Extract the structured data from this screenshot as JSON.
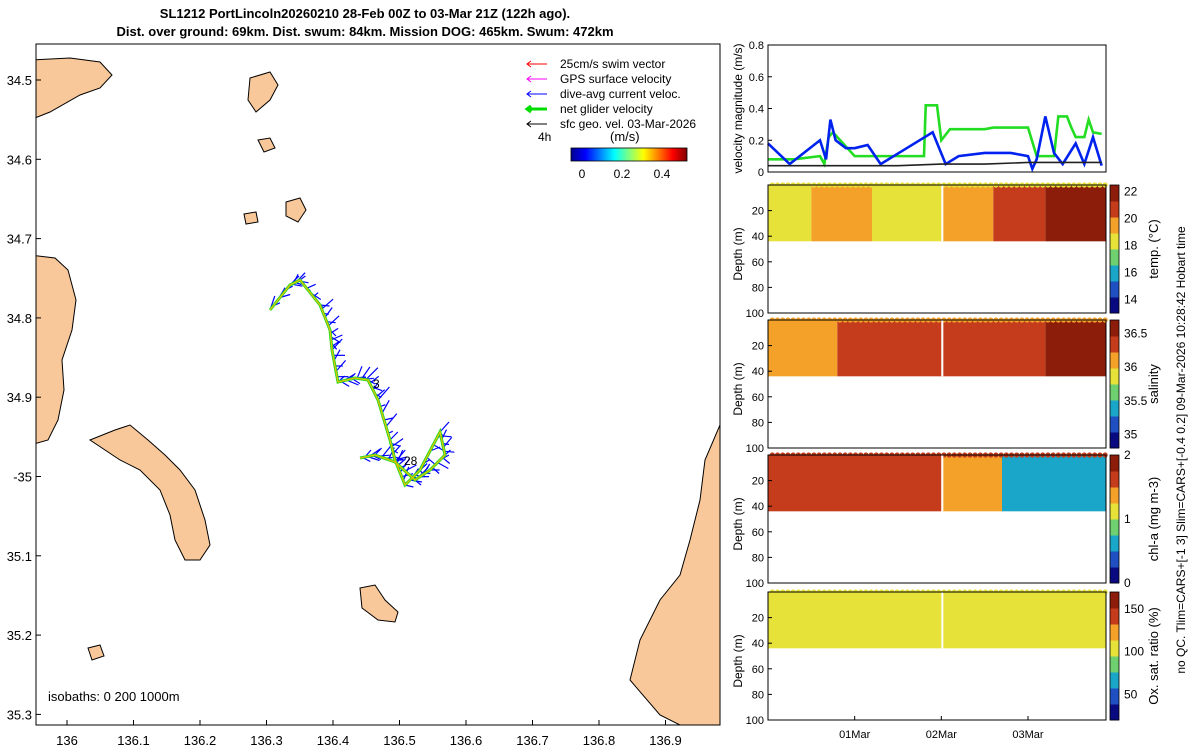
{
  "header": {
    "line1": "SL1212 PortLincoln20260210 28-Feb 00Z to 03-Mar 21Z (122h ago).",
    "line2": "Dist. over ground: 69km. Dist. swum: 84km. Mission DOG: 465km. Swum: 472km"
  },
  "map": {
    "lon_ticks": [
      "136",
      "136.1",
      "136.2",
      "136.3",
      "136.4",
      "136.5",
      "136.6",
      "136.7",
      "136.8",
      "136.9"
    ],
    "lat_ticks": [
      "34.5",
      "34.6",
      "34.7",
      "34.8",
      "34.9",
      "-35",
      "35.1",
      "35.2",
      "35.3"
    ],
    "legend": [
      {
        "label": "25cm/s swim vector",
        "color": "#ff0000"
      },
      {
        "label": "GPS surface velocity",
        "color": "#ff00ff"
      },
      {
        "label": "dive-avg current veloc.",
        "color": "#0000ff"
      },
      {
        "label": "net glider velocity",
        "color": "#00dd00"
      },
      {
        "label": "sfc geo. vel. 03-Mar-2026",
        "color": "#000000"
      }
    ],
    "legend_time": "4h",
    "colorbar_label": "(m/s)",
    "colorbar_ticks": [
      "0",
      "0.2",
      "0.4"
    ],
    "isobaths": "isobaths: 0   200  1000m",
    "track_labels": [
      "3",
      "28"
    ],
    "land_color": "#f9c89a",
    "track_color": "#0000ff"
  },
  "chart_data": [
    {
      "type": "line",
      "title": "",
      "ylabel": "velocity magnitude (m/s)",
      "ylim": [
        0,
        0.8
      ],
      "yticks": [
        "0",
        "0.2",
        "0.4",
        "0.6",
        "0.8"
      ],
      "x_unit": "days since 28-Feb 00Z",
      "xlim": [
        0,
        3.9
      ],
      "series": [
        {
          "name": "net glider velocity",
          "color": "#22dd22",
          "x": [
            0,
            0.3,
            0.6,
            0.65,
            0.7,
            0.75,
            0.8,
            1,
            1.2,
            1.5,
            1.8,
            1.82,
            1.95,
            2.0,
            2.1,
            2.5,
            2.6,
            2.8,
            3.0,
            3.1,
            3.2,
            3.3,
            3.35,
            3.45,
            3.5,
            3.55,
            3.65,
            3.7,
            3.75,
            3.85
          ],
          "y": [
            0.08,
            0.08,
            0.1,
            0.05,
            0.22,
            0.25,
            0.22,
            0.1,
            0.1,
            0.1,
            0.1,
            0.42,
            0.42,
            0.2,
            0.27,
            0.27,
            0.28,
            0.28,
            0.28,
            0.1,
            0.1,
            0.1,
            0.35,
            0.35,
            0.28,
            0.22,
            0.22,
            0.33,
            0.25,
            0.24
          ]
        },
        {
          "name": "dive-avg current veloc.",
          "color": "#0022ee",
          "x": [
            0,
            0.25,
            0.6,
            0.67,
            0.72,
            0.78,
            0.9,
            1.0,
            1.15,
            1.3,
            1.6,
            1.9,
            2.05,
            2.2,
            2.5,
            2.8,
            3.0,
            3.05,
            3.1,
            3.2,
            3.3,
            3.4,
            3.55,
            3.65,
            3.75,
            3.85
          ],
          "y": [
            0.18,
            0.05,
            0.2,
            0.08,
            0.33,
            0.2,
            0.15,
            0.15,
            0.17,
            0.05,
            0.15,
            0.25,
            0.05,
            0.1,
            0.12,
            0.12,
            0.1,
            0.02,
            0.08,
            0.35,
            0.12,
            0.05,
            0.18,
            0.05,
            0.22,
            0.04
          ]
        },
        {
          "name": "sfc geo. vel.",
          "color": "#222222",
          "x": [
            0,
            0.5,
            1,
            1.5,
            2,
            2.5,
            3,
            3.5,
            3.85
          ],
          "y": [
            0.04,
            0.04,
            0.04,
            0.04,
            0.05,
            0.05,
            0.06,
            0.06,
            0.06
          ]
        }
      ]
    },
    {
      "type": "heatmap",
      "variable": "temp.",
      "colorbar_label": "temp. (°C)",
      "clim": [
        13,
        22.5
      ],
      "cticks": [
        "14",
        "16",
        "18",
        "20",
        "22"
      ],
      "ylabel": "Depth (m)",
      "yticks": [
        "20",
        "40",
        "60",
        "80",
        "100"
      ],
      "ylim": [
        0,
        100
      ],
      "segments": [
        {
          "x": [
            0,
            0.5
          ],
          "value": 18.5
        },
        {
          "x": [
            0.5,
            1.2
          ],
          "value": 19.5
        },
        {
          "x": [
            1.2,
            2.0
          ],
          "value": 18.5
        },
        {
          "x": [
            2.0,
            2.6
          ],
          "value": 19.5
        },
        {
          "x": [
            2.6,
            3.2
          ],
          "value": 20.5
        },
        {
          "x": [
            3.2,
            3.9
          ],
          "value": 21.5
        }
      ]
    },
    {
      "type": "heatmap",
      "variable": "salinity",
      "colorbar_label": "salinity",
      "clim": [
        34.8,
        36.7
      ],
      "cticks": [
        "35",
        "35.5",
        "36",
        "36.5"
      ],
      "ylabel": "Depth (m)",
      "yticks": [
        "20",
        "40",
        "60",
        "80",
        "100"
      ],
      "ylim": [
        0,
        100
      ],
      "segments": [
        {
          "x": [
            0,
            0.8
          ],
          "value": 36.15
        },
        {
          "x": [
            0.8,
            2.0
          ],
          "value": 36.25
        },
        {
          "x": [
            2.0,
            2.7
          ],
          "value": 36.3
        },
        {
          "x": [
            2.7,
            3.2
          ],
          "value": 36.45
        },
        {
          "x": [
            3.2,
            3.9
          ],
          "value": 36.7
        }
      ]
    },
    {
      "type": "heatmap",
      "variable": "chl-a",
      "colorbar_label": "chl-a (mg m-3)",
      "clim": [
        0,
        2
      ],
      "cticks": [
        "0",
        "1",
        "2"
      ],
      "ylabel": "Depth (m)",
      "yticks": [
        "20",
        "40",
        "60",
        "80",
        "100"
      ],
      "ylim": [
        0,
        100
      ],
      "segments": [
        {
          "x": [
            0,
            0.9
          ],
          "value": 1.6
        },
        {
          "x": [
            0.9,
            2.0
          ],
          "value": 1.5
        },
        {
          "x": [
            2.0,
            2.7
          ],
          "value": 1.4
        },
        {
          "x": [
            2.7,
            3.3
          ],
          "value": 0.7
        },
        {
          "x": [
            3.3,
            3.9
          ],
          "value": 0.5
        }
      ]
    },
    {
      "type": "heatmap",
      "variable": "Ox. sat. ratio",
      "colorbar_label": "Ox. sat. ratio (%)",
      "clim": [
        20,
        170
      ],
      "cticks": [
        "50",
        "100",
        "150"
      ],
      "ylabel": "Depth (m)",
      "yticks": [
        "20",
        "40",
        "60",
        "80",
        "100"
      ],
      "ylim": [
        0,
        100
      ],
      "segments": [
        {
          "x": [
            0,
            3.9
          ],
          "value": 100
        }
      ]
    }
  ],
  "time_ticks": [
    "01Mar",
    "02Mar",
    "03Mar"
  ],
  "side_note": "no QC. Tlim=CARS+[-1 3] Slim=CARS+[-0.4 0.2] 09-Mar-2026 10:28:42 Hobart time"
}
